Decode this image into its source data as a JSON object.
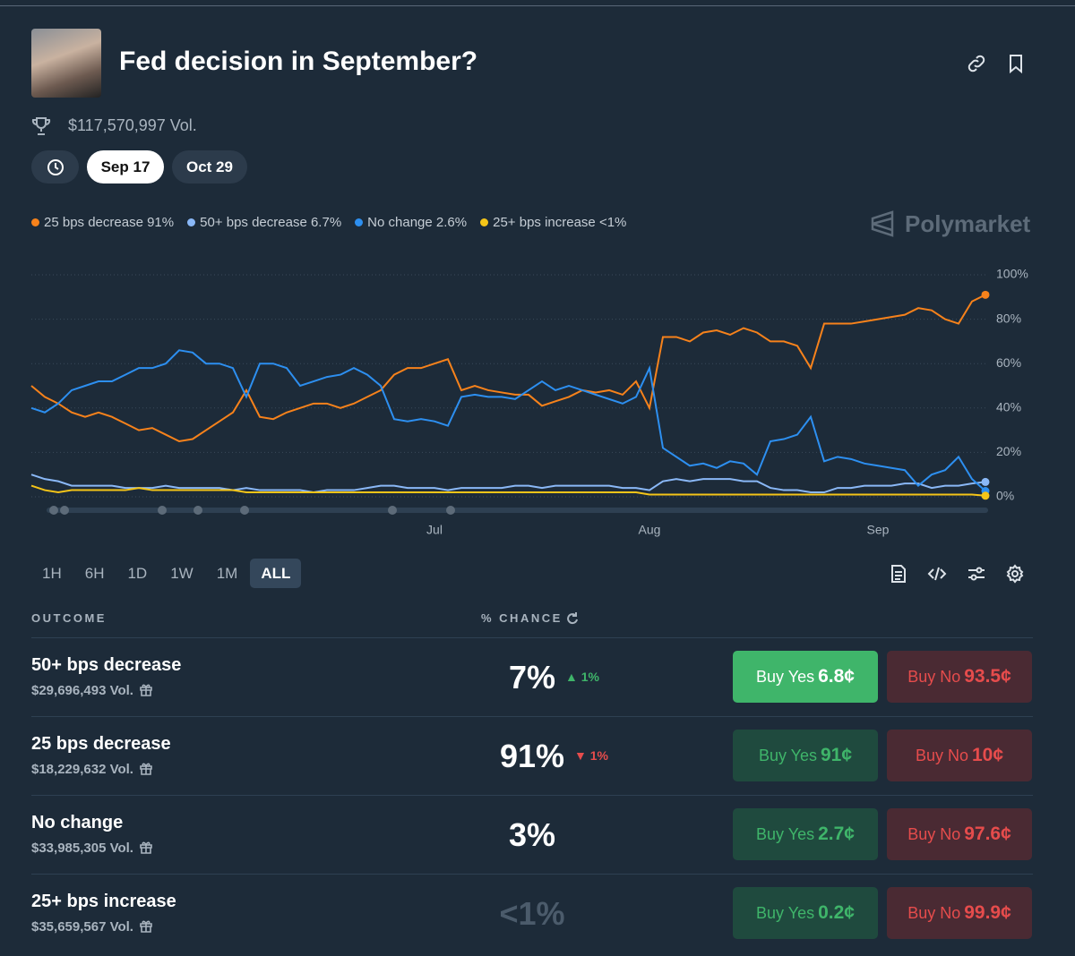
{
  "header": {
    "title": "Fed decision in September?",
    "volume": "$117,570,997 Vol."
  },
  "date_tabs": [
    "Sep 17",
    "Oct 29"
  ],
  "brand": "Polymarket",
  "chart_data": {
    "type": "line",
    "categories": [
      null,
      null,
      null,
      null,
      null,
      null,
      null,
      null,
      null,
      null,
      null,
      null,
      null,
      null,
      null,
      null,
      null,
      null,
      null,
      null,
      null,
      null,
      null,
      null,
      null,
      null,
      null,
      null,
      null,
      null,
      "Jul",
      null,
      null,
      null,
      null,
      null,
      null,
      null,
      null,
      null,
      null,
      null,
      null,
      null,
      null,
      null,
      "Aug",
      null,
      null,
      null,
      null,
      null,
      null,
      null,
      null,
      null,
      null,
      null,
      null,
      null,
      null,
      null,
      null,
      "Sep",
      null,
      null,
      null,
      null,
      null,
      null,
      null,
      null
    ],
    "series": [
      {
        "name": "25 bps decrease",
        "legend_label": "91%",
        "color": "#f7821b",
        "values": [
          50,
          45,
          42,
          38,
          36,
          38,
          36,
          33,
          30,
          31,
          28,
          25,
          26,
          30,
          34,
          38,
          48,
          36,
          35,
          38,
          40,
          42,
          42,
          40,
          42,
          45,
          48,
          55,
          58,
          58,
          60,
          62,
          48,
          50,
          48,
          47,
          46,
          46,
          41,
          43,
          45,
          48,
          47,
          48,
          46,
          52,
          40,
          72,
          72,
          70,
          74,
          75,
          73,
          76,
          74,
          70,
          70,
          68,
          58,
          78,
          78,
          78,
          79,
          80,
          81,
          82,
          85,
          84,
          80,
          78,
          88,
          91
        ]
      },
      {
        "name": "50+ bps decrease",
        "legend_label": "6.7%",
        "color": "#8ab8f7",
        "values": [
          10,
          8,
          7,
          5,
          5,
          5,
          5,
          4,
          4,
          4,
          5,
          4,
          4,
          4,
          4,
          3,
          4,
          3,
          3,
          3,
          3,
          2,
          3,
          3,
          3,
          4,
          5,
          5,
          4,
          4,
          4,
          3,
          4,
          4,
          4,
          4,
          5,
          5,
          4,
          5,
          5,
          5,
          5,
          5,
          4,
          4,
          3,
          7,
          8,
          7,
          8,
          8,
          8,
          7,
          7,
          4,
          3,
          3,
          2,
          2,
          4,
          4,
          5,
          5,
          5,
          6,
          6,
          4,
          5,
          5,
          6,
          6.7
        ]
      },
      {
        "name": "No change",
        "legend_label": "2.6%",
        "color": "#2d8ff0",
        "values": [
          40,
          38,
          42,
          48,
          50,
          52,
          52,
          55,
          58,
          58,
          60,
          66,
          65,
          60,
          60,
          58,
          45,
          60,
          60,
          58,
          50,
          52,
          54,
          55,
          58,
          55,
          50,
          35,
          34,
          35,
          34,
          32,
          45,
          46,
          45,
          45,
          44,
          48,
          52,
          48,
          50,
          48,
          46,
          44,
          42,
          45,
          58,
          22,
          18,
          14,
          15,
          13,
          16,
          15,
          10,
          25,
          26,
          28,
          36,
          16,
          18,
          17,
          15,
          14,
          13,
          12,
          5,
          10,
          12,
          18,
          8,
          2.6
        ]
      },
      {
        "name": "25+ bps increase",
        "legend_label": "<1%",
        "color": "#f5c518",
        "values": [
          5,
          3,
          2,
          3,
          3,
          3,
          3,
          3,
          4,
          3,
          3,
          3,
          3,
          3,
          3,
          3,
          2,
          2,
          2,
          2,
          2,
          2,
          2,
          2,
          2,
          2,
          2,
          2,
          2,
          2,
          2,
          2,
          2,
          2,
          2,
          2,
          2,
          2,
          2,
          2,
          2,
          2,
          2,
          2,
          2,
          2,
          1,
          1,
          1,
          1,
          1,
          1,
          1,
          1,
          1,
          1,
          1,
          1,
          1,
          1,
          1,
          1,
          1,
          1,
          1,
          1,
          1,
          1,
          1,
          1,
          1,
          0.5
        ]
      }
    ],
    "ylim": [
      0,
      100
    ],
    "yticks": [
      {
        "value": 0,
        "label": "0%"
      },
      {
        "value": 20,
        "label": "20%"
      },
      {
        "value": 40,
        "label": "40%"
      },
      {
        "value": 60,
        "label": "60%"
      },
      {
        "value": 80,
        "label": "80%"
      },
      {
        "value": 100,
        "label": "100%"
      }
    ],
    "grid": true
  },
  "ranges": [
    "1H",
    "6H",
    "1D",
    "1W",
    "1M",
    "ALL"
  ],
  "table": {
    "headers": [
      "OUTCOME",
      "% CHANCE"
    ],
    "rows": [
      {
        "name": "50+ bps decrease",
        "volume": "$29,696,493 Vol.",
        "chance": "7%",
        "change": "1%",
        "change_direction": "up",
        "yes_label": "Buy Yes",
        "yes_price": "6.8¢",
        "no_label": "Buy No",
        "no_price": "93.5¢"
      },
      {
        "name": "25 bps decrease",
        "volume": "$18,229,632 Vol.",
        "chance": "91%",
        "change": "1%",
        "change_direction": "down",
        "yes_label": "Buy Yes",
        "yes_price": "91¢",
        "no_label": "Buy No",
        "no_price": "10¢"
      },
      {
        "name": "No change",
        "volume": "$33,985,305 Vol.",
        "chance": "3%",
        "yes_label": "Buy Yes",
        "yes_price": "2.7¢",
        "no_label": "Buy No",
        "no_price": "97.6¢"
      },
      {
        "name": "25+ bps increase",
        "volume": "$35,659,567 Vol.",
        "chance": "<1%",
        "yes_label": "Buy Yes",
        "yes_price": "0.2¢",
        "no_label": "Buy No",
        "no_price": "99.9¢"
      }
    ]
  }
}
